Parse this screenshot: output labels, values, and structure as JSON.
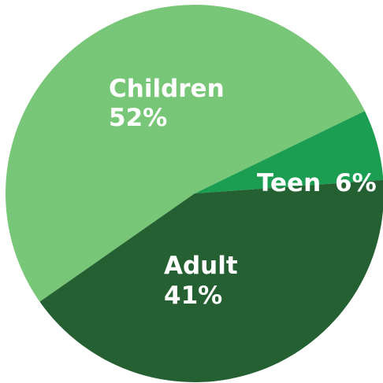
{
  "chart_data": {
    "type": "pie",
    "categories": [
      "Children",
      "Teen",
      "Adult"
    ],
    "values": [
      52,
      6,
      41
    ],
    "labels": [
      "52%",
      "6%",
      "41%"
    ],
    "colors": [
      "#78c677",
      "#1b9e52",
      "#256033"
    ],
    "title": "",
    "legend": "none"
  }
}
